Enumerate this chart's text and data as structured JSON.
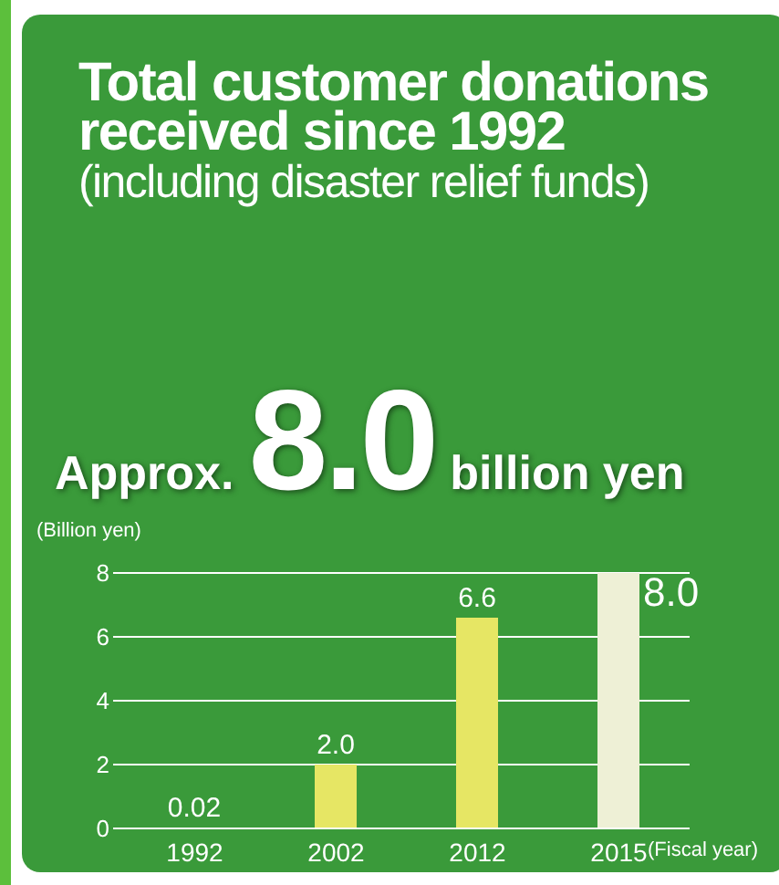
{
  "chart_data": {
    "type": "bar",
    "title": "Total customer donations received since 1992",
    "subtitle": "(including disaster relief funds)",
    "annotations": [
      "Approx.",
      "8.0",
      "billion yen"
    ],
    "ylabel": "(Billion yen)",
    "xlabel": "(Fiscal year)",
    "categories": [
      "1992",
      "2002",
      "2012",
      "2015"
    ],
    "values": [
      0.02,
      2.0,
      6.6,
      8.0
    ],
    "value_labels": [
      "0.02",
      "2.0",
      "6.6",
      "8.0"
    ],
    "colors": [
      "#e6e664",
      "#e6e664",
      "#e6e664",
      "#eef0d6"
    ],
    "ylim": [
      0,
      8
    ],
    "yticks": [
      0,
      2,
      4,
      6,
      8
    ],
    "grid": "y"
  }
}
